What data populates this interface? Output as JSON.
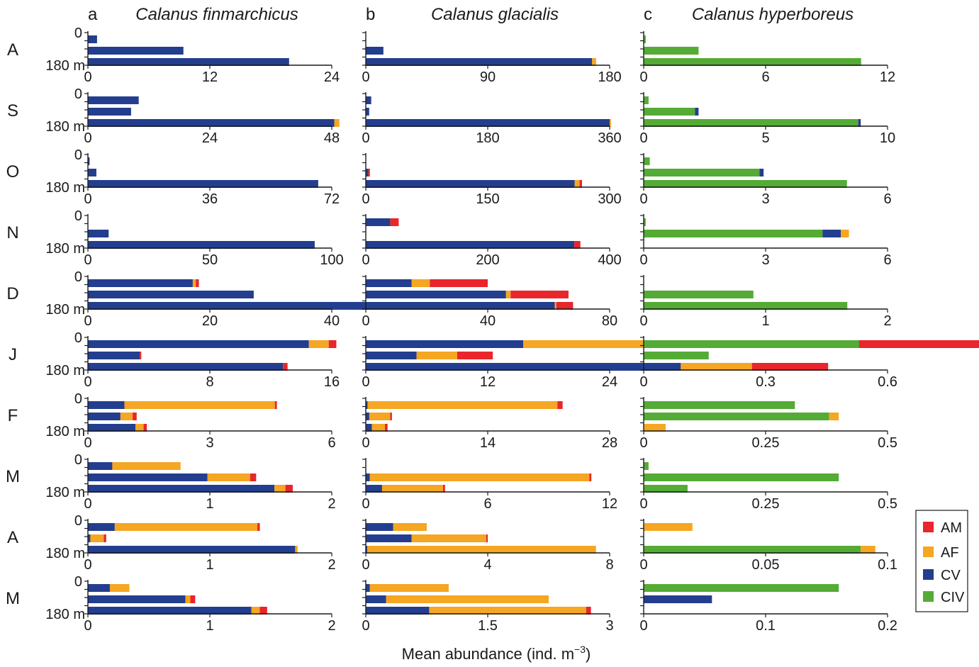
{
  "chart_data": {
    "type": "bar",
    "orientation": "horizontal-stacked",
    "xlabel": "Mean abundance (ind. m",
    "xlabel_sup": "−3",
    "xlabel_close": ")",
    "depth_top_label": "0",
    "depth_bottom_label": "180 m",
    "months": [
      "A",
      "S",
      "O",
      "N",
      "D",
      "J",
      "F",
      "M",
      "A",
      "M"
    ],
    "stages": [
      "AM",
      "AF",
      "CV",
      "CIV"
    ],
    "colors": {
      "AM": "#e8262b",
      "AF": "#f5a623",
      "CV": "#233e8f",
      "CIV": "#54ab35"
    },
    "legend": {
      "placement": "bottom-right",
      "entries": [
        "AM",
        "AF",
        "CV",
        "CIV"
      ]
    },
    "panels": [
      {
        "letter": "a",
        "species": "Calanus finmarchicus",
        "stack_order": [
          "CV",
          "AF",
          "AM"
        ],
        "ticks": [
          [
            "0",
            "12",
            "24"
          ],
          [
            "0",
            "24",
            "48"
          ],
          [
            "0",
            "36",
            "72"
          ],
          [
            "0",
            "50",
            "100"
          ],
          [
            "0",
            "20",
            "40"
          ],
          [
            "0",
            "8",
            "16"
          ],
          [
            "0",
            "3",
            "6"
          ],
          [
            "0",
            "1",
            "2"
          ],
          [
            "0",
            "1",
            "2"
          ],
          [
            "0",
            "1",
            "2"
          ]
        ],
        "xmax": [
          24,
          48,
          72,
          100,
          40,
          16,
          6,
          2,
          2,
          2
        ],
        "rows": [
          [
            {
              "CV": 0.9,
              "AF": 0,
              "AM": 0
            },
            {
              "CV": 9.4,
              "AF": 0,
              "AM": 0
            },
            {
              "CV": 19.8,
              "AF": 0,
              "AM": 0
            }
          ],
          [
            {
              "CV": 10,
              "AF": 0,
              "AM": 0
            },
            {
              "CV": 8.5,
              "AF": 0,
              "AM": 0
            },
            {
              "CV": 48.5,
              "AF": 1,
              "AM": 0
            }
          ],
          [
            {
              "CV": 0.5,
              "AF": 0,
              "AM": 0
            },
            {
              "CV": 2.5,
              "AF": 0,
              "AM": 0
            },
            {
              "CV": 68,
              "AF": 0,
              "AM": 0
            }
          ],
          [
            {
              "CV": 0,
              "AF": 0,
              "AM": 0
            },
            {
              "CV": 8.5,
              "AF": 0,
              "AM": 0
            },
            {
              "CV": 93,
              "AF": 0,
              "AM": 0
            }
          ],
          [
            {
              "CV": 17.2,
              "AF": 0.5,
              "AM": 0.5
            },
            {
              "CV": 27.2,
              "AF": 0,
              "AM": 0
            },
            {
              "CV": 67,
              "AF": 0.5,
              "AM": 0
            }
          ],
          [
            {
              "CV": 14.5,
              "AF": 1.3,
              "AM": 0.5
            },
            {
              "CV": 3.4,
              "AF": 0,
              "AM": 0.1
            },
            {
              "CV": 12.8,
              "AF": 0,
              "AM": 0.3
            }
          ],
          [
            {
              "CV": 0.9,
              "AF": 3.7,
              "AM": 0.05
            },
            {
              "CV": 0.8,
              "AF": 0.3,
              "AM": 0.1
            },
            {
              "CV": 1.17,
              "AF": 0.2,
              "AM": 0.08
            }
          ],
          [
            {
              "CV": 0.2,
              "AF": 0.56,
              "AM": 0
            },
            {
              "CV": 0.98,
              "AF": 0.35,
              "AM": 0.05
            },
            {
              "CV": 1.53,
              "AF": 0.09,
              "AM": 0.06
            }
          ],
          [
            {
              "CV": 0.22,
              "AF": 1.17,
              "AM": 0.02
            },
            {
              "CV": 0.02,
              "AF": 0.11,
              "AM": 0.02
            },
            {
              "CV": 1.7,
              "AF": 0.02,
              "AM": 0
            }
          ],
          [
            {
              "CV": 0.18,
              "AF": 0.16,
              "AM": 0
            },
            {
              "CV": 0.8,
              "AF": 0.04,
              "AM": 0.04
            },
            {
              "CV": 1.34,
              "AF": 0.07,
              "AM": 0.06
            }
          ]
        ]
      },
      {
        "letter": "b",
        "species": "Calanus glacialis",
        "stack_order": [
          "CV",
          "AF",
          "AM"
        ],
        "ticks": [
          [
            "0",
            "90",
            "180"
          ],
          [
            "0",
            "180",
            "360"
          ],
          [
            "0",
            "150",
            "300"
          ],
          [
            "0",
            "200",
            "400"
          ],
          [
            "0",
            "40",
            "80"
          ],
          [
            "0",
            "12",
            "24"
          ],
          [
            "0",
            "14",
            "28"
          ],
          [
            "0",
            "6",
            "12"
          ],
          [
            "0",
            "4",
            "8"
          ],
          [
            "0",
            "1.5",
            "3"
          ]
        ],
        "xmax": [
          180,
          360,
          300,
          400,
          80,
          24,
          28,
          12,
          8,
          3
        ],
        "rows": [
          [
            {
              "CV": 0,
              "AF": 0,
              "AM": 0
            },
            {
              "CV": 13,
              "AF": 0,
              "AM": 0
            },
            {
              "CV": 167,
              "AF": 3,
              "AM": 0
            }
          ],
          [
            {
              "CV": 8,
              "AF": 0,
              "AM": 0
            },
            {
              "CV": 5,
              "AF": 0,
              "AM": 0
            },
            {
              "CV": 360,
              "AF": 2,
              "AM": 0
            }
          ],
          [
            {
              "CV": 0,
              "AF": 0,
              "AM": 0
            },
            {
              "CV": 3,
              "AF": 0,
              "AM": 2
            },
            {
              "CV": 257,
              "AF": 6,
              "AM": 3
            }
          ],
          [
            {
              "CV": 40,
              "AF": 0,
              "AM": 14
            },
            {
              "CV": 0,
              "AF": 0,
              "AM": 0
            },
            {
              "CV": 342,
              "AF": 0,
              "AM": 10
            }
          ],
          [
            {
              "CV": 15,
              "AF": 6,
              "AM": 19
            },
            {
              "CV": 46,
              "AF": 1.5,
              "AM": 19
            },
            {
              "CV": 62,
              "AF": 0.5,
              "AM": 5.5
            }
          ],
          [
            {
              "CV": 15.5,
              "AF": 31,
              "AM": 14.5
            },
            {
              "CV": 5,
              "AF": 4,
              "AM": 3.5
            },
            {
              "CV": 31,
              "AF": 7,
              "AM": 7.5
            }
          ],
          [
            {
              "CV": 0.2,
              "AF": 21.8,
              "AM": 0.6
            },
            {
              "CV": 0.4,
              "AF": 2.4,
              "AM": 0.2
            },
            {
              "CV": 0.7,
              "AF": 1.5,
              "AM": 0.3
            }
          ],
          [
            {
              "CV": 0,
              "AF": 0,
              "AM": 0
            },
            {
              "CV": 0.2,
              "AF": 10.8,
              "AM": 0.1
            },
            {
              "CV": 0.8,
              "AF": 3.0,
              "AM": 0.1
            }
          ],
          [
            {
              "CV": 0.9,
              "AF": 1.1,
              "AM": 0
            },
            {
              "CV": 1.5,
              "AF": 2.45,
              "AM": 0.05
            },
            {
              "CV": 0.05,
              "AF": 7.5,
              "AM": 0
            }
          ],
          [
            {
              "CV": 0.05,
              "AF": 0.97,
              "AM": 0
            },
            {
              "CV": 0.25,
              "AF": 2.0,
              "AM": 0
            },
            {
              "CV": 0.78,
              "AF": 1.93,
              "AM": 0.06
            }
          ]
        ]
      },
      {
        "letter": "c",
        "species": "Calanus hyperboreus",
        "stack_order": [
          "CIV",
          "CV",
          "AF"
        ],
        "ticks": [
          [
            "0",
            "6",
            "12"
          ],
          [
            "0",
            "5",
            "10"
          ],
          [
            "0",
            "3",
            "6"
          ],
          [
            "0",
            "3",
            "6"
          ],
          [
            "0",
            "1",
            "2"
          ],
          [
            "0",
            "0.3",
            "0.6"
          ],
          [
            "0",
            "0.25",
            "0.5"
          ],
          [
            "0",
            "0.25",
            "0.5"
          ],
          [
            "0",
            "0.05",
            "0.1"
          ],
          [
            "0",
            "0.1",
            "0.2"
          ]
        ],
        "xmax": [
          12,
          10,
          6,
          6,
          2,
          0.6,
          0.5,
          0.5,
          0.1,
          0.2
        ],
        "rows": [
          [
            {
              "CIV": 0.1,
              "CV": 0,
              "AF": 0
            },
            {
              "CIV": 2.7,
              "CV": 0,
              "AF": 0
            },
            {
              "CIV": 10.7,
              "CV": 0,
              "AF": 0
            }
          ],
          [
            {
              "CIV": 0.2,
              "CV": 0,
              "AF": 0
            },
            {
              "CIV": 2.1,
              "CV": 0.15,
              "AF": 0
            },
            {
              "CIV": 8.8,
              "CV": 0.1,
              "AF": 0
            }
          ],
          [
            {
              "CIV": 0.15,
              "CV": 0,
              "AF": 0
            },
            {
              "CIV": 2.85,
              "CV": 0.1,
              "AF": 0
            },
            {
              "CIV": 5.0,
              "CV": 0,
              "AF": 0
            }
          ],
          [
            {
              "CIV": 0.05,
              "CV": 0,
              "AF": 0
            },
            {
              "CIV": 4.4,
              "CV": 0.45,
              "AF": 0.2
            },
            {
              "CIV": 0,
              "CV": 0,
              "AF": 0
            }
          ],
          [
            {
              "CIV": 0,
              "CV": 0,
              "AF": 0
            },
            {
              "CIV": 0.9,
              "CV": 0,
              "AF": 0
            },
            {
              "CIV": 1.67,
              "CV": 0,
              "AF": 0
            }
          ],
          [
            {
              "CIV": 0.53,
              "CV": 0,
              "AF": 0
            },
            {
              "CIV": 0.16,
              "CV": 0,
              "AF": 0
            },
            {
              "CIV": 0,
              "CV": 0,
              "AF": 0
            }
          ],
          [
            {
              "CIV": 0.31,
              "CV": 0,
              "AF": 0
            },
            {
              "CIV": 0.38,
              "CV": 0,
              "AF": 0.02
            },
            {
              "CIV": 0,
              "CV": 0,
              "AF": 0.045
            }
          ],
          [
            {
              "CIV": 0.01,
              "CV": 0,
              "AF": 0
            },
            {
              "CIV": 0.4,
              "CV": 0,
              "AF": 0
            },
            {
              "CIV": 0.09,
              "CV": 0,
              "AF": 0
            }
          ],
          [
            {
              "CIV": 0,
              "CV": 0,
              "AF": 0.02
            },
            {
              "CIV": 0,
              "CV": 0,
              "AF": 0
            },
            {
              "CIV": 0.089,
              "CV": 0,
              "AF": 0.006
            }
          ],
          [
            {
              "CIV": 0.16,
              "CV": 0,
              "AF": 0
            },
            {
              "CIV": 0,
              "CV": 0.056,
              "AF": 0
            },
            {
              "CIV": 0,
              "CV": 0,
              "AF": 0
            }
          ]
        ]
      }
    ]
  }
}
